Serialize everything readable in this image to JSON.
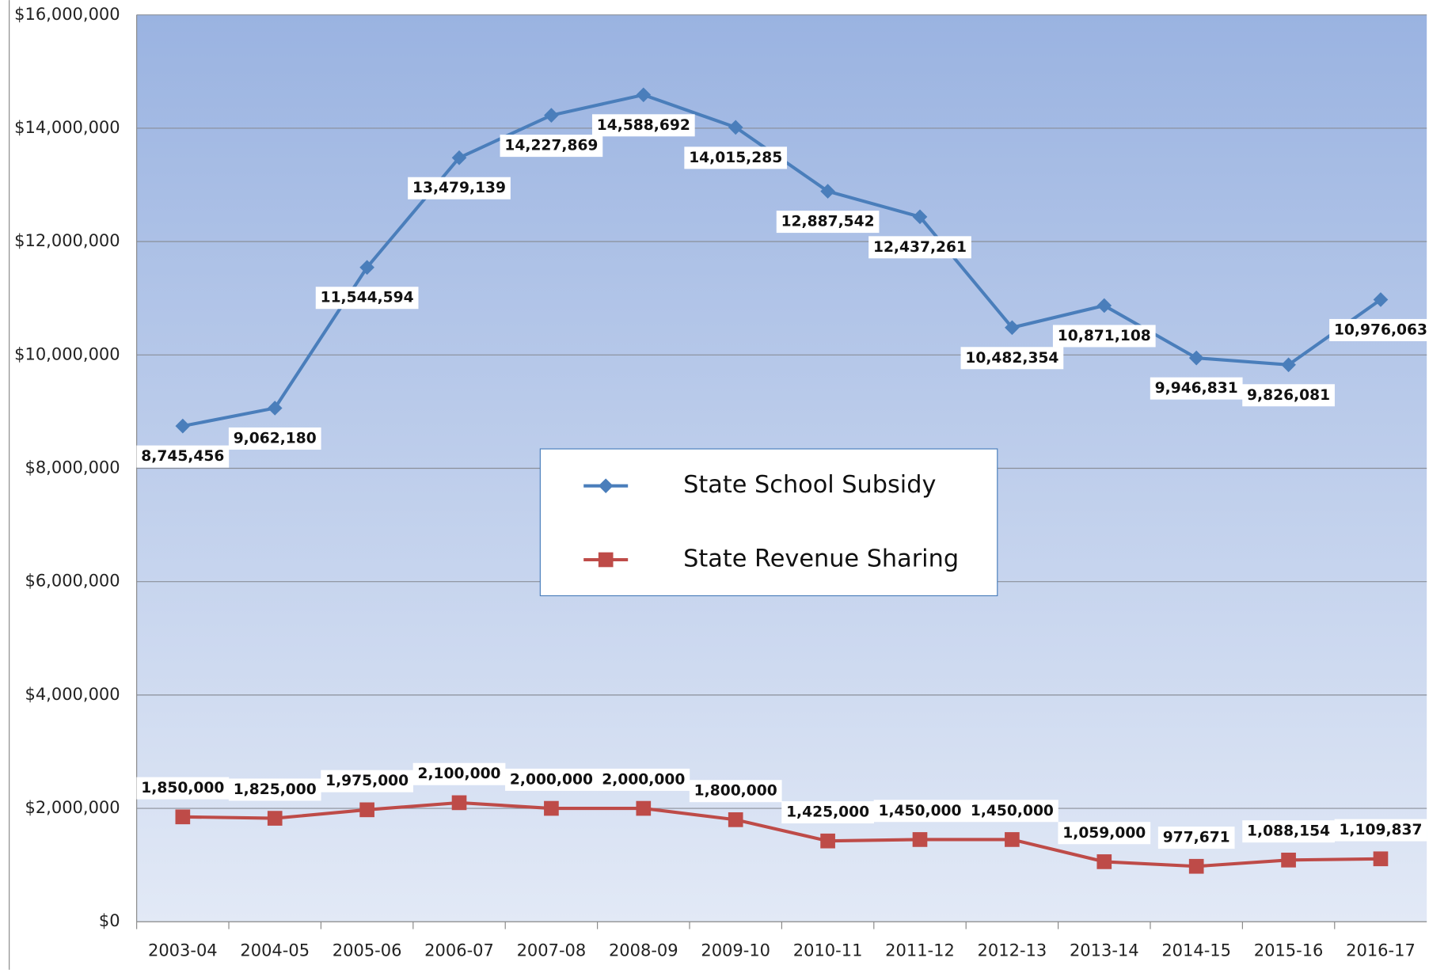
{
  "chart_data": {
    "type": "line",
    "categories": [
      "2003-04",
      "2004-05",
      "2005-06",
      "2006-07",
      "2007-08",
      "2008-09",
      "2009-10",
      "2010-11",
      "2011-12",
      "2012-13",
      "2013-14",
      "2014-15",
      "2015-16",
      "2016-17"
    ],
    "series": [
      {
        "name": "State School Subsidy",
        "color": "#4a7ebb",
        "marker": "diamond",
        "values": [
          8745456,
          9062180,
          11544594,
          13479139,
          14227869,
          14588692,
          14015285,
          12887542,
          12437261,
          10482354,
          10871108,
          9946831,
          9826081,
          10976063
        ],
        "value_labels": [
          "8,745,456",
          "9,062,180",
          "11,544,594",
          "13,479,139",
          "14,227,869",
          "14,588,692",
          "14,015,285",
          "12,887,542",
          "12,437,261",
          "10,482,354",
          "10,871,108",
          "9,946,831",
          "9,826,081",
          "10,976,063"
        ]
      },
      {
        "name": "State Revenue Sharing",
        "color": "#be4b48",
        "marker": "square",
        "values": [
          1850000,
          1825000,
          1975000,
          2100000,
          2000000,
          2000000,
          1800000,
          1425000,
          1450000,
          1450000,
          1059000,
          977671,
          1088154,
          1109837
        ],
        "value_labels": [
          "1,850,000",
          "1,825,000",
          "1,975,000",
          "2,100,000",
          "2,000,000",
          "2,000,000",
          "1,800,000",
          "1,425,000",
          "1,450,000",
          "1,450,000",
          "1,059,000",
          "977,671",
          "1,088,154",
          "1,109,837"
        ]
      }
    ],
    "ylim": [
      0,
      16000000
    ],
    "yticks": [
      {
        "value": 0,
        "label": "$0"
      },
      {
        "value": 2000000,
        "label": "$2,000,000"
      },
      {
        "value": 4000000,
        "label": "$4,000,000"
      },
      {
        "value": 6000000,
        "label": "$6,000,000"
      },
      {
        "value": 8000000,
        "label": "$8,000,000"
      },
      {
        "value": 10000000,
        "label": "$10,000,000"
      },
      {
        "value": 12000000,
        "label": "$12,000,000"
      },
      {
        "value": 14000000,
        "label": "$14,000,000"
      },
      {
        "value": 16000000,
        "label": "$16,000,000"
      }
    ],
    "grid": true
  }
}
